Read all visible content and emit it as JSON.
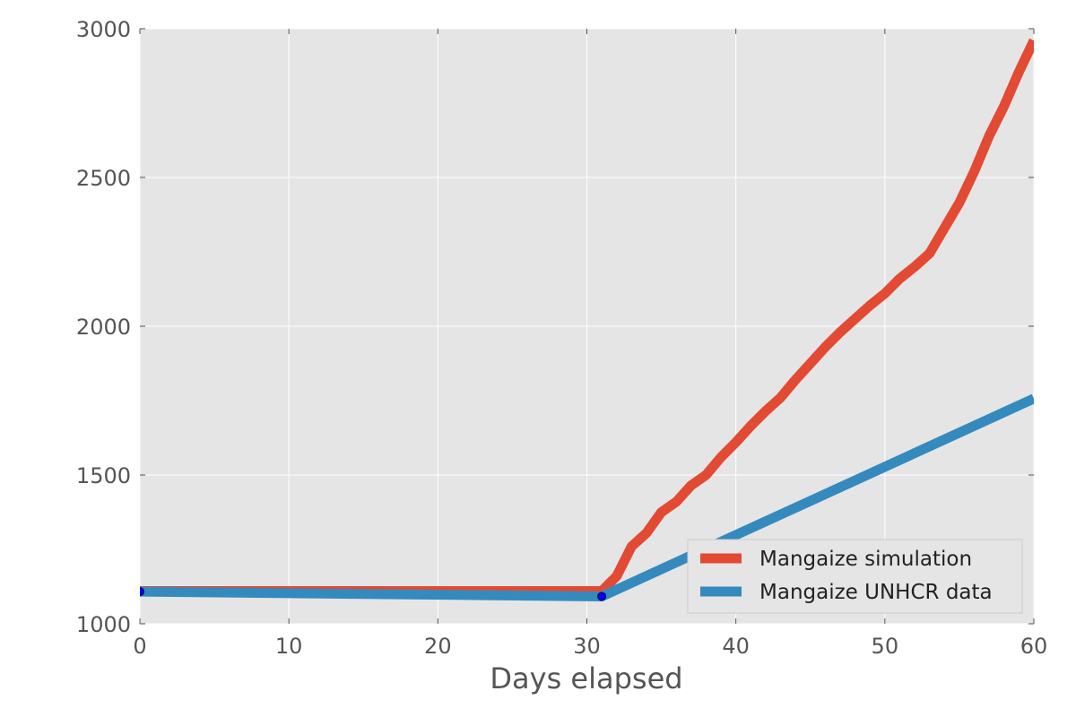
{
  "chart_data": {
    "type": "line",
    "title": "",
    "xlabel": "Days elapsed",
    "ylabel": "",
    "xlim": [
      0,
      60
    ],
    "ylim": [
      1000,
      3000
    ],
    "x_ticks": [
      0,
      10,
      20,
      30,
      40,
      50,
      60
    ],
    "y_ticks": [
      1000,
      1500,
      2000,
      2500,
      3000
    ],
    "grid": true,
    "legend_position": "lower-right",
    "background_color": "#e5e5e5",
    "series": [
      {
        "name": "Mangaize simulation",
        "color": "#e24a33",
        "x": [
          0,
          31,
          32,
          33,
          34,
          35,
          36,
          37,
          38,
          39,
          40,
          41,
          42,
          43,
          44,
          45,
          46,
          47,
          48,
          49,
          50,
          51,
          52,
          53,
          54,
          55,
          56,
          57,
          58,
          59,
          60
        ],
        "y": [
          1110,
          1110,
          1160,
          1260,
          1305,
          1375,
          1410,
          1465,
          1500,
          1560,
          1610,
          1665,
          1715,
          1760,
          1820,
          1875,
          1930,
          1980,
          2025,
          2070,
          2110,
          2160,
          2200,
          2245,
          2330,
          2415,
          2520,
          2640,
          2740,
          2855,
          2960
        ]
      },
      {
        "name": "Mangaize UNHCR data",
        "color": "#348abd",
        "x": [
          0,
          31,
          60
        ],
        "y": [
          1108,
          1092,
          1757
        ]
      }
    ],
    "markers": {
      "color": "#0000ff",
      "x": [
        0,
        31
      ],
      "y": [
        1108,
        1092
      ]
    }
  }
}
